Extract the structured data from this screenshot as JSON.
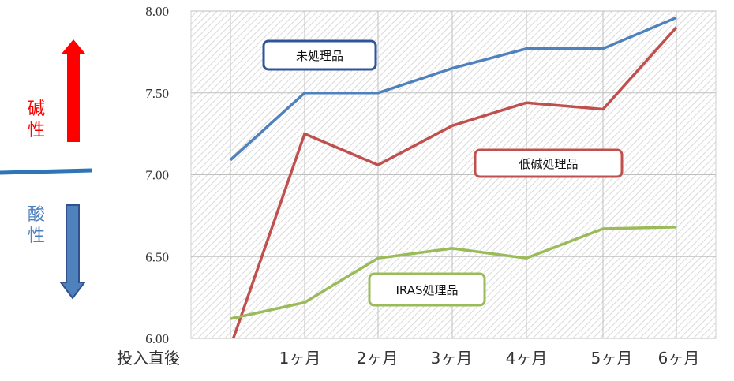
{
  "chart_data": {
    "type": "line",
    "categories": [
      "投入直後",
      "1ヶ月",
      "2ヶ月",
      "3ヶ月",
      "4ヶ月",
      "5ヶ月",
      "6ヶ月"
    ],
    "ylim": [
      6.0,
      8.0
    ],
    "yticks": [
      "6.00",
      "6.50",
      "7.00",
      "7.50",
      "8.00"
    ],
    "grid": true,
    "series": [
      {
        "name": "未処理品",
        "color": "#4f81bd",
        "values": [
          7.09,
          7.5,
          7.5,
          7.65,
          7.77,
          7.77,
          7.96
        ]
      },
      {
        "name": "低碱処理品",
        "color": "#c0504d",
        "values": [
          5.95,
          7.25,
          7.06,
          7.3,
          7.44,
          7.4,
          7.9
        ]
      },
      {
        "name": "IRAS処理品",
        "color": "#9bbb59",
        "values": [
          6.12,
          6.22,
          6.49,
          6.55,
          6.49,
          6.67,
          6.68
        ]
      }
    ]
  },
  "indicator": {
    "alkaline_label": [
      "碱",
      "性"
    ],
    "acidic_label": [
      "酸",
      "性"
    ],
    "alkaline_color": "#ff0000",
    "acidic_color": "#4f81bd"
  }
}
